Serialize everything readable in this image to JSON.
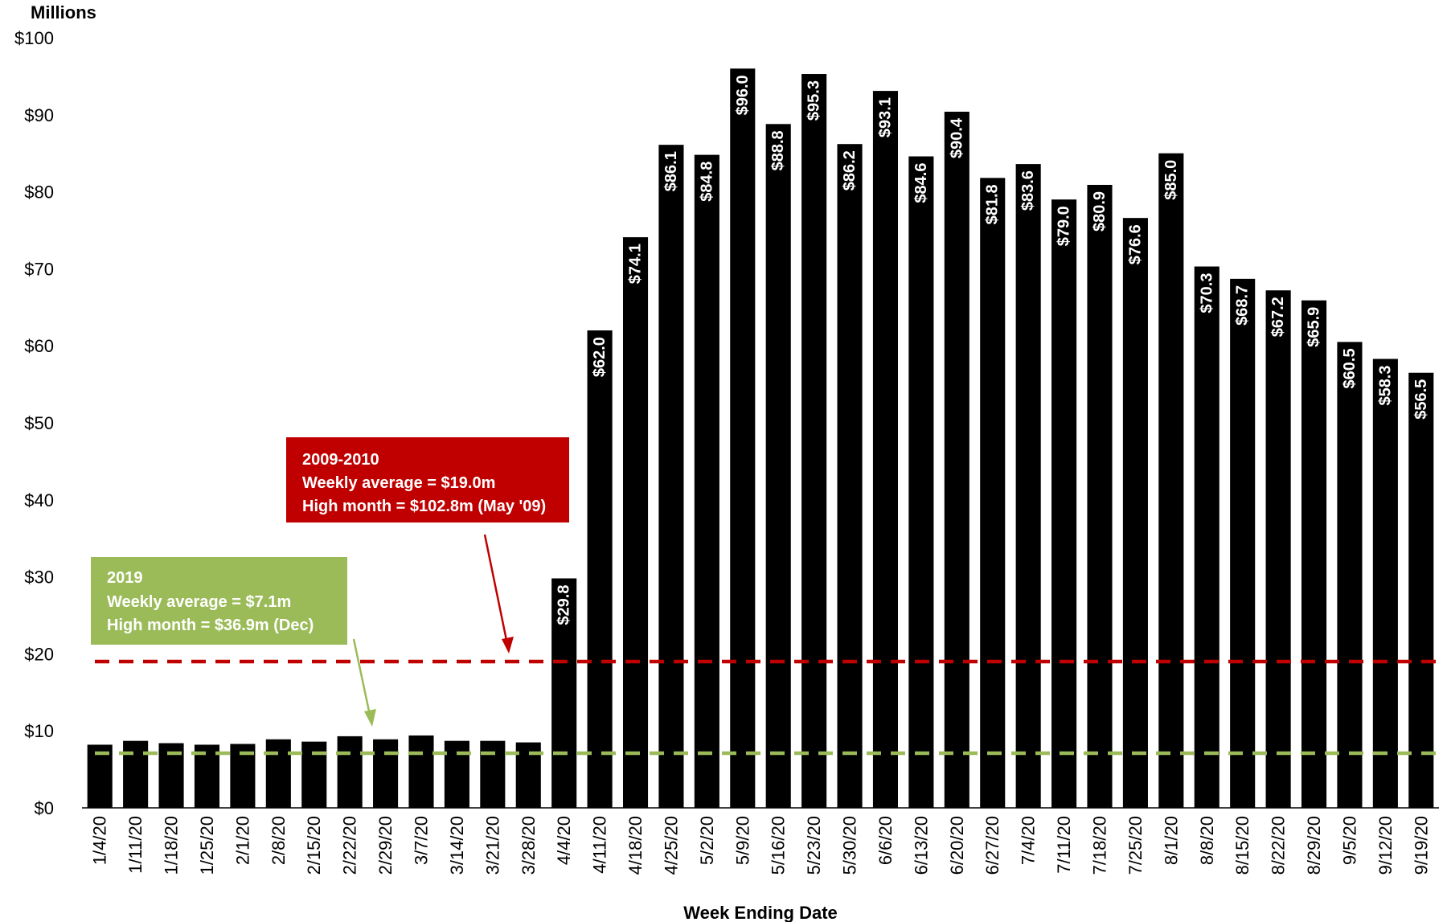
{
  "chart_data": {
    "type": "bar",
    "title": "",
    "ylabel": "Millions",
    "xlabel": "Week Ending Date",
    "ylim": [
      0,
      100
    ],
    "yticks": [
      "$0",
      "$10",
      "$20",
      "$30",
      "$40",
      "$50",
      "$60",
      "$70",
      "$80",
      "$90",
      "$100"
    ],
    "ytick_values": [
      0,
      10,
      20,
      30,
      40,
      50,
      60,
      70,
      80,
      90,
      100
    ],
    "categories": [
      "1/4/20",
      "1/11/20",
      "1/18/20",
      "1/25/20",
      "2/1/20",
      "2/8/20",
      "2/15/20",
      "2/22/20",
      "2/29/20",
      "3/7/20",
      "3/14/20",
      "3/21/20",
      "3/28/20",
      "4/4/20",
      "4/11/20",
      "4/18/20",
      "4/25/20",
      "5/2/20",
      "5/9/20",
      "5/16/20",
      "5/23/20",
      "5/30/20",
      "6/6/20",
      "6/13/20",
      "6/20/20",
      "6/27/20",
      "7/4/20",
      "7/11/20",
      "7/18/20",
      "7/25/20",
      "8/1/20",
      "8/8/20",
      "8/15/20",
      "8/22/20",
      "8/29/20",
      "9/5/20",
      "9/12/20",
      "9/19/20"
    ],
    "values": [
      8.2,
      8.7,
      8.4,
      8.2,
      8.3,
      8.9,
      8.6,
      9.3,
      8.9,
      9.4,
      8.7,
      8.7,
      8.5,
      29.8,
      62.0,
      74.1,
      86.1,
      84.8,
      96.0,
      88.8,
      95.3,
      86.2,
      93.1,
      84.6,
      90.4,
      81.8,
      83.6,
      79.0,
      80.9,
      76.6,
      85.0,
      70.3,
      68.7,
      67.2,
      65.9,
      60.5,
      58.3,
      56.5
    ],
    "data_labels": [
      "",
      "",
      "",
      "",
      "",
      "",
      "",
      "",
      "",
      "",
      "",
      "",
      "",
      "$29.8",
      "$62.0",
      "$74.1",
      "$86.1",
      "$84.8",
      "$96.0",
      "$88.8",
      "$95.3",
      "$86.2",
      "$93.1",
      "$84.6",
      "$90.4",
      "$81.8",
      "$83.6",
      "$79.0",
      "$80.9",
      "$76.6",
      "$85.0",
      "$70.3",
      "$68.7",
      "$67.2",
      "$65.9",
      "$60.5",
      "$58.3",
      "$56.5"
    ],
    "bar_color": "#000000",
    "reference_lines": [
      {
        "value": 19.0,
        "color": "#c00000",
        "style": "dashed"
      },
      {
        "value": 7.1,
        "color": "#9bbb59",
        "style": "dashed"
      }
    ],
    "annotations": [
      {
        "lines": [
          "2009-2010",
          "Weekly average = $19.0m",
          "High month = $102.8m (May '09)"
        ],
        "color": "#c00000"
      },
      {
        "lines": [
          "2019",
          "Weekly average = $7.1m",
          "High month = $36.9m (Dec)"
        ],
        "color": "#9bbb59"
      }
    ],
    "grid": false,
    "legend": "none"
  }
}
